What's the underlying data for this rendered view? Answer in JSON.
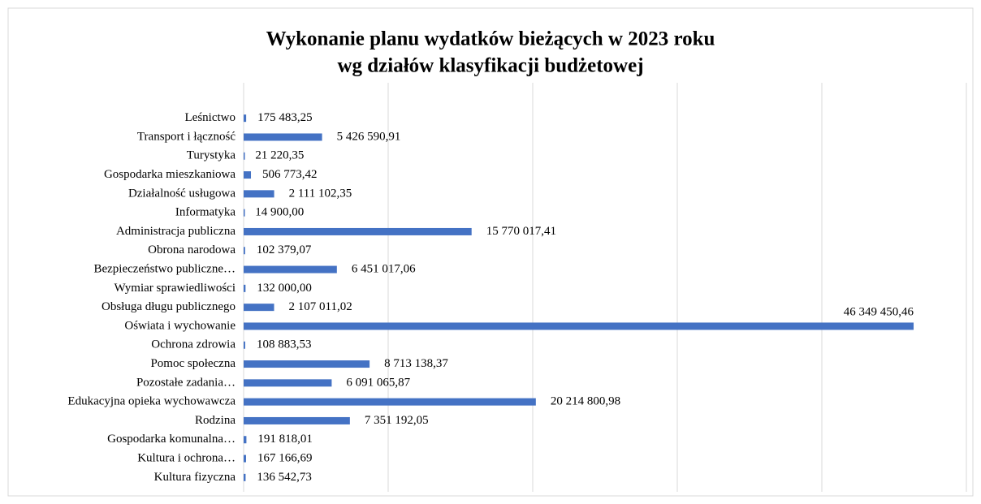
{
  "chart_data": {
    "type": "bar",
    "orientation": "horizontal",
    "title": [
      "Wykonanie planu wydatków bieżących w 2023 roku",
      "wg działów klasyfikacji budżetowej"
    ],
    "categories": [
      "Leśnictwo",
      "Transport i łączność",
      "Turystyka",
      "Gospodarka mieszkaniowa",
      "Działalność usługowa",
      "Informatyka",
      "Administracja publiczna",
      "Obrona narodowa",
      "Bezpieczeństwo publiczne…",
      "Wymiar sprawiedliwości",
      "Obsługa długu publicznego",
      "Oświata i wychowanie",
      "Ochrona zdrowia",
      "Pomoc społeczna",
      "Pozostałe zadania…",
      "Edukacyjna opieka wychowawcza",
      "Rodzina",
      "Gospodarka komunalna…",
      "Kultura i ochrona…",
      "Kultura fizyczna"
    ],
    "values": [
      175483.25,
      5426590.91,
      21220.35,
      506773.42,
      2111102.35,
      14900.0,
      15770017.41,
      102379.07,
      6451017.06,
      132000.0,
      2107011.02,
      46349450.46,
      108883.53,
      8713138.37,
      6091065.87,
      20214800.98,
      7351192.05,
      191818.01,
      167166.69,
      136542.73
    ],
    "value_labels": [
      "175 483,25",
      "5 426 590,91",
      "21 220,35",
      "506 773,42",
      "2 111 102,35",
      "14 900,00",
      "15 770 017,41",
      "102 379,07",
      "6 451 017,06",
      "132 000,00",
      "2 107 011,02",
      "46 349 450,46",
      "108 883,53",
      "8 713 138,37",
      "6 091 065,87",
      "20 214 800,98",
      "7 351 192,05",
      "191 818,01",
      "167 166,69",
      "136 542,73"
    ],
    "color": "#4472c4",
    "xlim": [
      0,
      50000000
    ],
    "xticks": [
      0,
      10000000,
      20000000,
      30000000,
      40000000,
      50000000
    ],
    "grid": true
  }
}
